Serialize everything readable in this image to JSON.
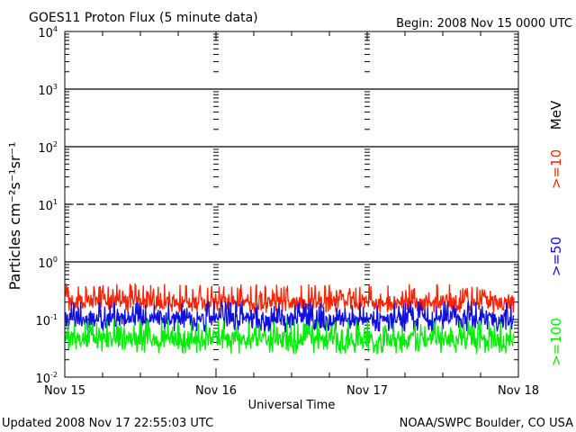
{
  "chart_data": {
    "type": "line",
    "title": "GOES11 Proton Flux (5 minute data)",
    "begin": "Begin: 2008 Nov 15 0000 UTC",
    "xlabel": "Universal Time",
    "ylabel": "Particles cm⁻²s⁻¹sr⁻¹",
    "yscale": "log",
    "ylim": [
      0.01,
      10000
    ],
    "x_ticks": [
      "Nov 15",
      "Nov 16",
      "Nov 17",
      "Nov 18"
    ],
    "y_ticks": [
      {
        "base": "10",
        "exp": "4"
      },
      {
        "base": "10",
        "exp": "3"
      },
      {
        "base": "10",
        "exp": "2"
      },
      {
        "base": "10",
        "exp": "1"
      },
      {
        "base": "10",
        "exp": "0"
      },
      {
        "base": "10",
        "exp": "-1"
      },
      {
        "base": "10",
        "exp": "-2"
      }
    ],
    "unit_label": "MeV",
    "threshold_lines": [
      {
        "value": 1000,
        "style": "solid"
      },
      {
        "value": 100,
        "style": "solid"
      },
      {
        "value": 10,
        "style": "dashed"
      },
      {
        "value": 1,
        "style": "solid"
      }
    ],
    "series": [
      {
        "name": ">=10",
        "color": "#ff2200",
        "range": [
          0.13,
          0.42
        ],
        "typical": 0.2
      },
      {
        "name": ">=50",
        "color": "#1010dd",
        "range": [
          0.06,
          0.21
        ],
        "typical": 0.1
      },
      {
        "name": ">=100",
        "color": "#00ee00",
        "range": [
          0.025,
          0.1
        ],
        "typical": 0.045
      }
    ]
  },
  "footer": {
    "updated": "Updated 2008 Nov 17 22:55:03 UTC",
    "source": "NOAA/SWPC Boulder, CO USA"
  }
}
